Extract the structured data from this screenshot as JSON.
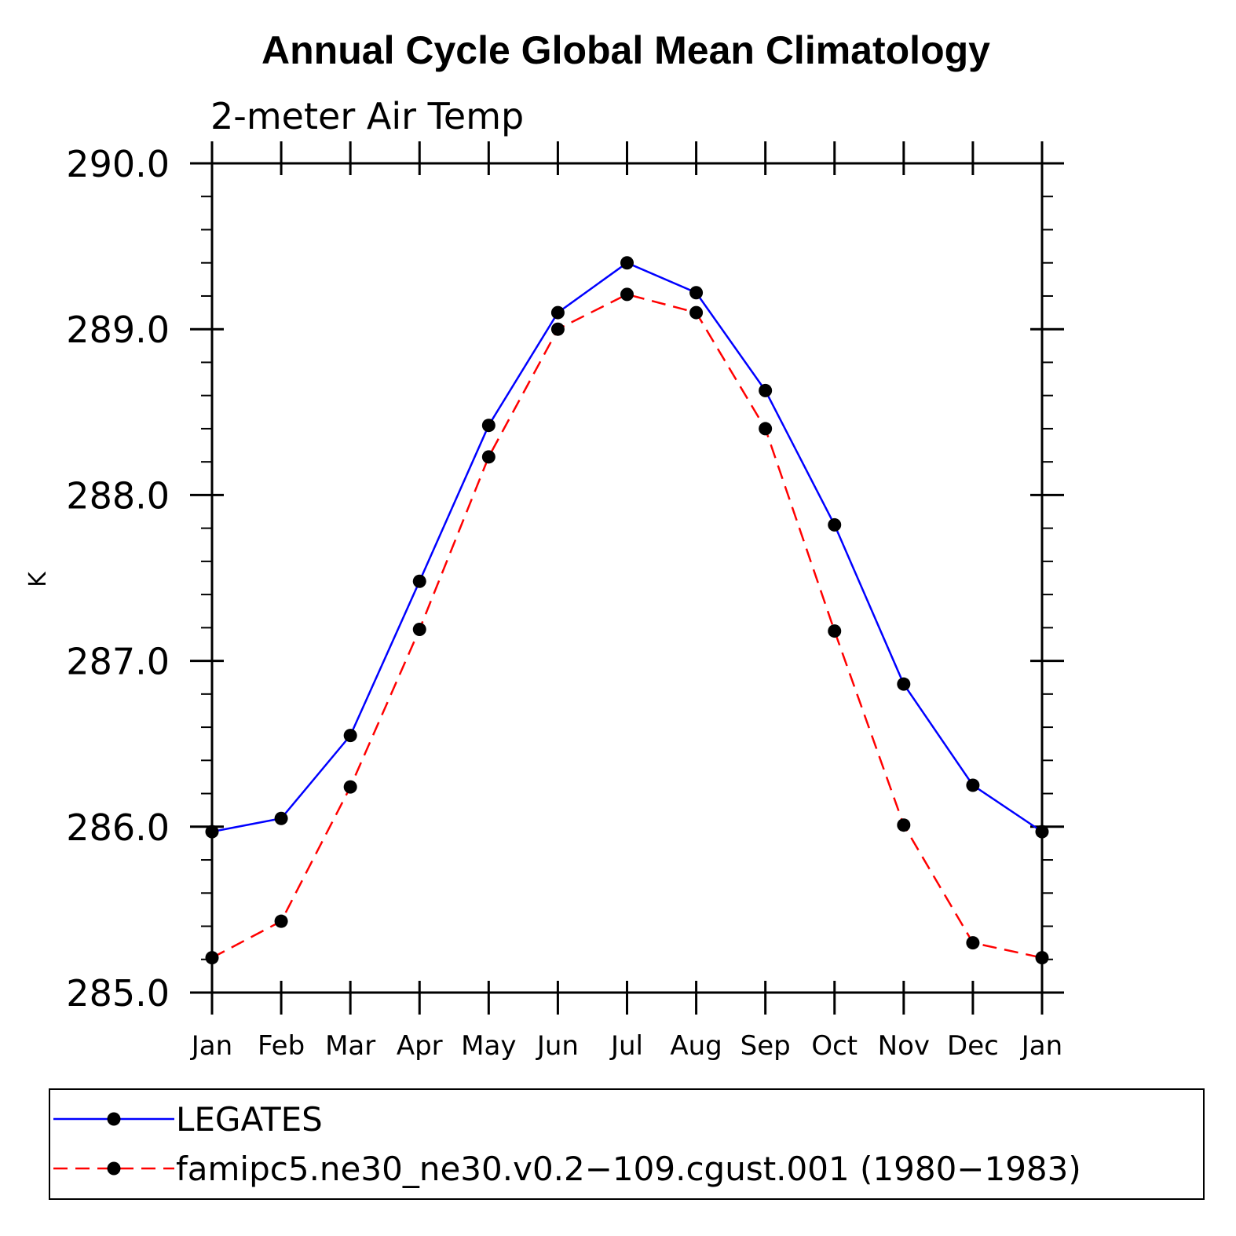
{
  "chart_data": {
    "type": "line",
    "title": "Annual Cycle Global Mean Climatology",
    "subtitle": "2-meter Air Temp",
    "xlabel": "",
    "ylabel": "K",
    "categories": [
      "Jan",
      "Feb",
      "Mar",
      "Apr",
      "May",
      "Jun",
      "Jul",
      "Aug",
      "Sep",
      "Oct",
      "Nov",
      "Dec",
      "Jan"
    ],
    "ylim": [
      285.0,
      290.0
    ],
    "yticks": [
      "285.0",
      "286.0",
      "287.0",
      "288.0",
      "289.0",
      "290.0"
    ],
    "grid": false,
    "legend_position": "bottom",
    "series": [
      {
        "name": "LEGATES",
        "color": "#0000ff",
        "dash": "solid",
        "marker": "filled-circle",
        "values": [
          285.97,
          286.05,
          286.55,
          287.48,
          288.42,
          289.1,
          289.4,
          289.22,
          288.63,
          287.82,
          286.86,
          286.25,
          285.97
        ]
      },
      {
        "name": "famipc5.ne30_ne30.v0.2−109.cgust.001 (1980−1983)",
        "color": "#ff0000",
        "dash": "dashed",
        "marker": "filled-circle",
        "values": [
          285.21,
          285.43,
          286.24,
          287.19,
          288.23,
          289.0,
          289.21,
          289.1,
          288.4,
          287.18,
          286.01,
          285.3,
          285.21
        ]
      }
    ],
    "colors": {
      "axes": "#000000",
      "marker": "#000000"
    }
  }
}
